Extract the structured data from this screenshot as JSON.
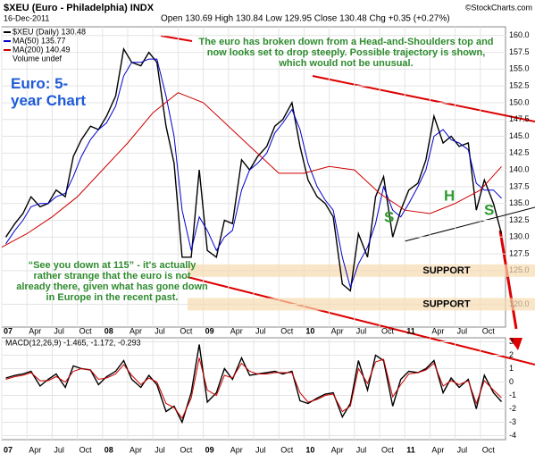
{
  "header": {
    "symbol": "$XEU (Euro - Philadelphia) INDX",
    "date": "16-Dec-2011",
    "quote": "Open 130.69 High 130.84 Low 129.95 Close 130.48 Chg +0.35 (+0.27%)",
    "source": "©StockCharts.com"
  },
  "chart_data": [
    {
      "type": "line",
      "title": "Euro: 5-year Chart",
      "annotations": [
        "The euro has broken down from a Head-and-Shoulders top and now looks set to drop steeply. Possible trajectory is shown, which would not be unusual.",
        "“See you down at 115” - it's actually rather strange that the euro is not already there, given what has gone down in Europe in the recent past."
      ],
      "pattern_labels": [
        "S",
        "H",
        "S"
      ],
      "support": [
        {
          "value": 125,
          "label": "SUPPORT"
        },
        {
          "value": 120,
          "label": "SUPPORT"
        }
      ],
      "legend_extra": "Volume undef",
      "x": [
        2007.04,
        2007.13,
        2007.21,
        2007.29,
        2007.38,
        2007.46,
        2007.54,
        2007.63,
        2007.71,
        2007.79,
        2007.88,
        2007.96,
        2008.04,
        2008.13,
        2008.21,
        2008.29,
        2008.38,
        2008.46,
        2008.54,
        2008.63,
        2008.71,
        2008.79,
        2008.88,
        2008.96,
        2009.04,
        2009.13,
        2009.21,
        2009.29,
        2009.38,
        2009.46,
        2009.54,
        2009.63,
        2009.71,
        2009.79,
        2009.88,
        2009.96,
        2010.04,
        2010.13,
        2010.21,
        2010.29,
        2010.38,
        2010.46,
        2010.54,
        2010.63,
        2010.71,
        2010.79,
        2010.88,
        2010.96,
        2011.04,
        2011.13,
        2011.21,
        2011.29,
        2011.38,
        2011.46,
        2011.54,
        2011.63,
        2011.71,
        2011.79,
        2011.88,
        2011.96
      ],
      "series": [
        {
          "name": "$XEU (Daily) 130.48",
          "color": "#000000",
          "values": [
            130,
            132,
            133.5,
            136,
            134.5,
            135,
            137,
            136,
            142,
            144.5,
            146.5,
            146,
            148,
            151,
            158,
            156,
            155.5,
            157.5,
            156,
            146.5,
            141,
            127,
            127,
            140,
            128,
            127,
            132.5,
            132,
            141.5,
            140,
            142,
            143.5,
            146.5,
            147.5,
            150,
            143.5,
            138.5,
            136,
            135,
            133,
            123,
            122,
            130.5,
            127,
            136,
            139,
            130,
            134,
            137,
            138,
            141.5,
            148,
            144,
            145,
            143.5,
            144,
            134,
            138.5,
            135,
            130.48
          ]
        },
        {
          "name": "MA(50) 135.77",
          "color": "#0000cc",
          "values": [
            129,
            131,
            132.5,
            134.5,
            135,
            135,
            136,
            136.5,
            139,
            142,
            144.5,
            146,
            147,
            149.5,
            154,
            156,
            156,
            156.5,
            156.5,
            151,
            145,
            134,
            128,
            133,
            131,
            128,
            130,
            131,
            137,
            140,
            141,
            142.5,
            145.5,
            147,
            149,
            146,
            141,
            137.5,
            135.5,
            134,
            127,
            122.5,
            126,
            128.5,
            132,
            137.5,
            134,
            133,
            135,
            137.5,
            140,
            145,
            146,
            144.5,
            144,
            143,
            138,
            137,
            137,
            135.77
          ]
        },
        {
          "name": "MA(200) 140.49",
          "color": "#cc0000",
          "x": [
            2007.0,
            2007.25,
            2007.5,
            2007.75,
            2008.0,
            2008.25,
            2008.5,
            2008.75,
            2009.0,
            2009.25,
            2009.5,
            2009.75,
            2010.0,
            2010.25,
            2010.5,
            2010.75,
            2011.0,
            2011.25,
            2011.5,
            2011.75,
            2011.96
          ],
          "values": [
            128.5,
            130.5,
            133,
            136,
            140,
            144,
            148.5,
            151.5,
            150,
            146.5,
            143,
            139.5,
            139.5,
            140.5,
            140,
            136.5,
            134,
            133.5,
            135,
            137,
            140.49
          ]
        }
      ],
      "xlim": [
        2007,
        2012
      ],
      "ylim": [
        116.6,
        161.3
      ],
      "xticks": [
        {
          "value": 2007,
          "label": "07"
        },
        {
          "value": 2007.25,
          "label": "Apr"
        },
        {
          "value": 2007.5,
          "label": "Jul"
        },
        {
          "value": 2007.75,
          "label": "Oct"
        },
        {
          "value": 2008,
          "label": "08"
        },
        {
          "value": 2008.25,
          "label": "Apr"
        },
        {
          "value": 2008.5,
          "label": "Jul"
        },
        {
          "value": 2008.75,
          "label": "Oct"
        },
        {
          "value": 2009,
          "label": "09"
        },
        {
          "value": 2009.25,
          "label": "Apr"
        },
        {
          "value": 2009.5,
          "label": "Jul"
        },
        {
          "value": 2009.75,
          "label": "Oct"
        },
        {
          "value": 2010,
          "label": "10"
        },
        {
          "value": 2010.25,
          "label": "Apr"
        },
        {
          "value": 2010.5,
          "label": "Jul"
        },
        {
          "value": 2010.75,
          "label": "Oct"
        },
        {
          "value": 2011,
          "label": "11"
        },
        {
          "value": 2011.25,
          "label": "Apr"
        },
        {
          "value": 2011.5,
          "label": "Jul"
        },
        {
          "value": 2011.75,
          "label": "Oct"
        }
      ],
      "yticks": [
        {
          "value": 160,
          "label": "160.0"
        },
        {
          "value": 157.5,
          "label": "157.5"
        },
        {
          "value": 155,
          "label": "155.0"
        },
        {
          "value": 152.5,
          "label": "152.5"
        },
        {
          "value": 150,
          "label": "150.0"
        },
        {
          "value": 147.5,
          "label": "147.5"
        },
        {
          "value": 145,
          "label": "145.0"
        },
        {
          "value": 142.5,
          "label": "142.5"
        },
        {
          "value": 140,
          "label": "140.0"
        },
        {
          "value": 137.5,
          "label": "137.5"
        },
        {
          "value": 135,
          "label": "135.0"
        },
        {
          "value": 132.5,
          "label": "132.5"
        },
        {
          "value": 130,
          "label": "130.0"
        },
        {
          "value": 127.5,
          "label": "127.5"
        },
        {
          "value": 125,
          "label": "125.0"
        },
        {
          "value": 120,
          "label": "120.0"
        }
      ],
      "grid": true
    },
    {
      "type": "line",
      "title": "MACD(12,26,9) -1.465, -1.172, -0.293",
      "x": [
        2007.04,
        2007.13,
        2007.21,
        2007.29,
        2007.38,
        2007.46,
        2007.54,
        2007.63,
        2007.71,
        2007.79,
        2007.88,
        2007.96,
        2008.04,
        2008.13,
        2008.21,
        2008.29,
        2008.38,
        2008.46,
        2008.54,
        2008.63,
        2008.71,
        2008.79,
        2008.88,
        2008.96,
        2009.04,
        2009.13,
        2009.21,
        2009.29,
        2009.38,
        2009.46,
        2009.54,
        2009.63,
        2009.71,
        2009.79,
        2009.88,
        2009.96,
        2010.04,
        2010.13,
        2010.21,
        2010.29,
        2010.38,
        2010.46,
        2010.54,
        2010.63,
        2010.71,
        2010.79,
        2010.88,
        2010.96,
        2011.04,
        2011.13,
        2011.21,
        2011.29,
        2011.38,
        2011.46,
        2011.54,
        2011.63,
        2011.71,
        2011.79,
        2011.88,
        2011.96
      ],
      "series": [
        {
          "color": "#000000",
          "values": [
            0.3,
            0.5,
            0.6,
            0.8,
            -0.3,
            0.2,
            0.6,
            -0.4,
            1.2,
            1.0,
            0.9,
            -0.2,
            0.4,
            0.8,
            1.6,
            0.2,
            -0.4,
            0.5,
            -0.2,
            -2.2,
            -1.8,
            -3.0,
            -0.8,
            2.8,
            -1.5,
            -0.8,
            1.0,
            0.2,
            1.8,
            0.5,
            0.6,
            0.7,
            0.8,
            0.6,
            0.8,
            -1.4,
            -1.6,
            -1.2,
            -0.9,
            -0.8,
            -2.6,
            -1.6,
            1.6,
            -0.6,
            2.0,
            1.6,
            -1.8,
            0.2,
            0.8,
            0.7,
            1.0,
            1.6,
            -0.8,
            0.3,
            -0.4,
            0.2,
            -2.0,
            0.5,
            -0.8,
            -1.465
          ]
        },
        {
          "color": "#cc0000",
          "values": [
            0.2,
            0.4,
            0.5,
            0.7,
            0.1,
            0.1,
            0.4,
            0.0,
            0.8,
            1.0,
            0.9,
            0.2,
            0.3,
            0.6,
            1.3,
            0.5,
            -0.2,
            0.3,
            0.0,
            -1.6,
            -1.9,
            -2.7,
            -1.2,
            1.8,
            -0.6,
            -1.0,
            0.5,
            0.3,
            1.4,
            0.8,
            0.6,
            0.6,
            0.7,
            0.7,
            0.7,
            -0.8,
            -1.5,
            -1.3,
            -1.0,
            -0.9,
            -2.2,
            -1.8,
            1.0,
            -0.1,
            1.5,
            1.7,
            -1.1,
            -0.2,
            0.6,
            0.7,
            0.9,
            1.4,
            -0.3,
            0.1,
            -0.2,
            0.1,
            -1.6,
            0.1,
            -0.6,
            -1.172
          ]
        }
      ],
      "xlim": [
        2007,
        2012
      ],
      "ylim": [
        -4.3,
        3.3
      ],
      "xticks": [
        {
          "value": 2007,
          "label": "07"
        },
        {
          "value": 2007.25,
          "label": "Apr"
        },
        {
          "value": 2007.5,
          "label": "Jul"
        },
        {
          "value": 2007.75,
          "label": "Oct"
        },
        {
          "value": 2008,
          "label": "08"
        },
        {
          "value": 2008.25,
          "label": "Apr"
        },
        {
          "value": 2008.5,
          "label": "Jul"
        },
        {
          "value": 2008.75,
          "label": "Oct"
        },
        {
          "value": 2009,
          "label": "09"
        },
        {
          "value": 2009.25,
          "label": "Apr"
        },
        {
          "value": 2009.5,
          "label": "Jul"
        },
        {
          "value": 2009.75,
          "label": "Oct"
        },
        {
          "value": 2010,
          "label": "10"
        },
        {
          "value": 2010.25,
          "label": "Apr"
        },
        {
          "value": 2010.5,
          "label": "Jul"
        },
        {
          "value": 2010.75,
          "label": "Oct"
        },
        {
          "value": 2011,
          "label": "11"
        },
        {
          "value": 2011.25,
          "label": "Apr"
        },
        {
          "value": 2011.5,
          "label": "Jul"
        },
        {
          "value": 2011.75,
          "label": "Oct"
        }
      ],
      "yticks": [
        3,
        2,
        1,
        0,
        -1,
        -2,
        -3,
        -4
      ],
      "grid": true
    }
  ]
}
